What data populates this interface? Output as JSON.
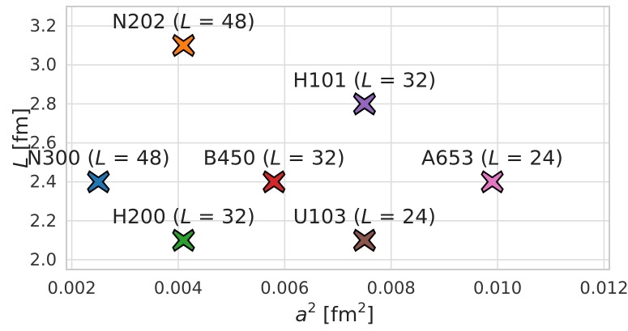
{
  "chart_data": {
    "type": "scatter",
    "title": "",
    "xlabel": {
      "base": "a",
      "sup": "2",
      "unit_pre": " [fm",
      "unit_sup": "2",
      "unit_post": "]"
    },
    "ylabel": "L [fm]",
    "xlim": [
      0.0019,
      0.0121
    ],
    "ylim": [
      1.95,
      3.3
    ],
    "xticks": [
      0.002,
      0.004,
      0.006,
      0.008,
      0.01,
      0.012
    ],
    "xtick_labels": [
      "0.002",
      "0.004",
      "0.006",
      "0.008",
      "0.010",
      "0.012"
    ],
    "yticks": [
      2.0,
      2.2,
      2.4,
      2.6,
      2.8,
      3.0,
      3.2
    ],
    "ytick_labels": [
      "2.0",
      "2.2",
      "2.4",
      "2.6",
      "2.8",
      "3.0",
      "3.2"
    ],
    "grid": true,
    "marker": "X",
    "points": [
      {
        "name": "N300",
        "L_sites": "48",
        "x": 0.0025,
        "y": 2.4,
        "color": "#1f77b4"
      },
      {
        "name": "N202",
        "L_sites": "48",
        "x": 0.0041,
        "y": 3.1,
        "color": "#ff7f0e"
      },
      {
        "name": "H200",
        "L_sites": "32",
        "x": 0.0041,
        "y": 2.1,
        "color": "#2ca02c"
      },
      {
        "name": "B450",
        "L_sites": "32",
        "x": 0.0058,
        "y": 2.4,
        "color": "#d62728"
      },
      {
        "name": "H101",
        "L_sites": "32",
        "x": 0.0075,
        "y": 2.8,
        "color": "#9467bd"
      },
      {
        "name": "U103",
        "L_sites": "24",
        "x": 0.0075,
        "y": 2.1,
        "color": "#8c564b"
      },
      {
        "name": "A653",
        "L_sites": "24",
        "x": 0.0099,
        "y": 2.4,
        "color": "#e377c2"
      }
    ]
  }
}
